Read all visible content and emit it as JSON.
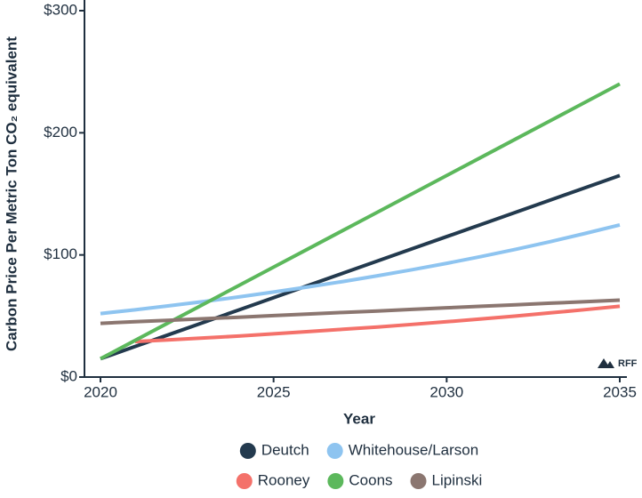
{
  "chart_data": {
    "type": "line",
    "y_label": "Carbon Price Per Metric Ton CO₂ equivalent",
    "x_label": "Year",
    "logo": "RFF",
    "x": [
      2020,
      2021,
      2022,
      2023,
      2024,
      2025,
      2026,
      2027,
      2028,
      2029,
      2030,
      2031,
      2032,
      2033,
      2034,
      2035
    ],
    "xlim": [
      2020,
      2035
    ],
    "xticks": [
      2020,
      2025,
      2030,
      2035
    ],
    "ylim": [
      0,
      300
    ],
    "yticks": [
      {
        "value": 0,
        "label": "$0"
      },
      {
        "value": 100,
        "label": "$100"
      },
      {
        "value": 200,
        "label": "$200"
      },
      {
        "value": 300,
        "label": "$300"
      }
    ],
    "grid": false,
    "series": [
      {
        "name": "Deutch",
        "color": "#233a4e",
        "values": [
          15,
          25,
          35,
          45,
          55,
          65,
          75,
          85,
          95,
          105,
          115,
          125,
          135,
          145,
          155,
          165
        ]
      },
      {
        "name": "Whitehouse/Larson",
        "color": "#8ec4f0",
        "values": [
          52,
          55.1,
          58.4,
          61.9,
          65.6,
          69.6,
          73.8,
          78.2,
          82.9,
          87.9,
          93.1,
          98.7,
          104.6,
          110.9,
          117.6,
          124.6
        ]
      },
      {
        "name": "Rooney",
        "color": "#f4716a",
        "values": [
          null,
          29,
          30.5,
          32,
          33.6,
          35.4,
          37.2,
          39.1,
          41,
          43.1,
          45.3,
          47.6,
          50,
          52.6,
          55.2,
          58
        ]
      },
      {
        "name": "Coons",
        "color": "#5cb85c",
        "values": [
          15,
          30,
          45,
          60,
          75,
          90,
          105,
          120,
          135,
          150,
          165,
          180,
          195,
          210,
          225,
          240
        ]
      },
      {
        "name": "Lipinski",
        "color": "#8b7670",
        "values": [
          44,
          45.3,
          46.5,
          47.8,
          49,
          50.3,
          51.6,
          52.9,
          54.1,
          55.4,
          56.7,
          58,
          59.2,
          60.5,
          61.7,
          63
        ]
      }
    ]
  }
}
